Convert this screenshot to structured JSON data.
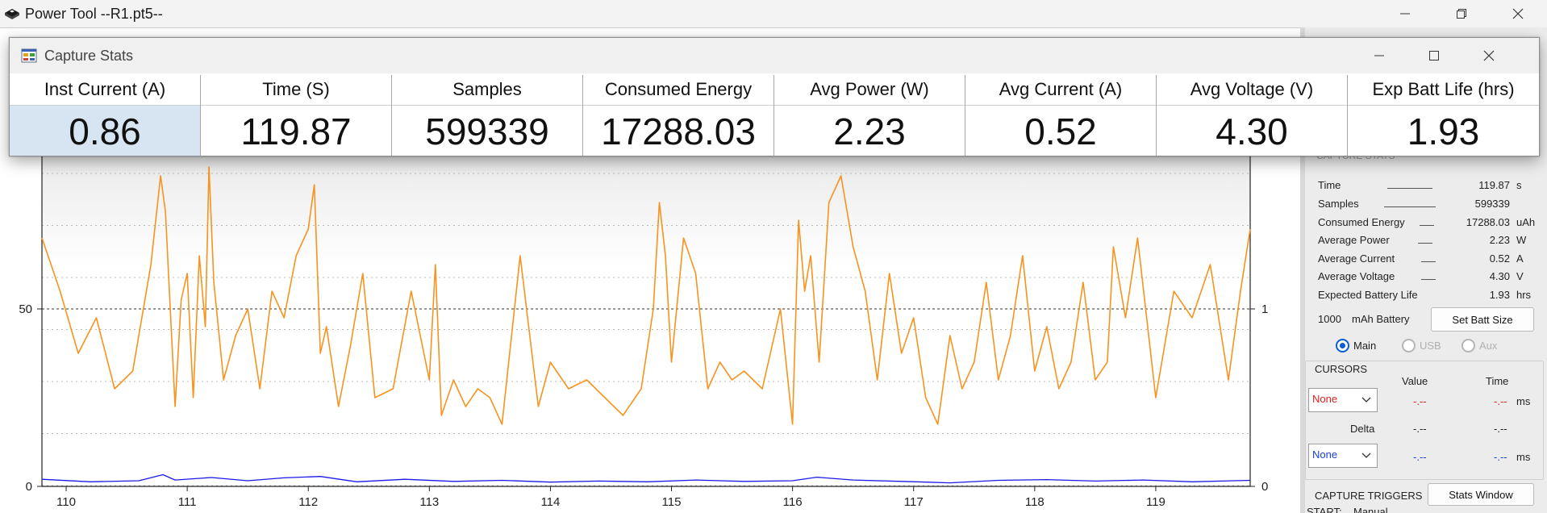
{
  "window": {
    "title": "Power Tool --R1.pt5--"
  },
  "dialog": {
    "title": "Capture Stats",
    "stats": [
      {
        "label": "Inst Current (A)",
        "value": "0.86",
        "selected": true
      },
      {
        "label": "Time (S)",
        "value": "119.87"
      },
      {
        "label": "Samples",
        "value": "599339"
      },
      {
        "label": "Consumed Energy",
        "value": "17288.03"
      },
      {
        "label": "Avg Power (W)",
        "value": "2.23"
      },
      {
        "label": "Avg Current (A)",
        "value": "0.52"
      },
      {
        "label": "Avg Voltage (V)",
        "value": "4.30"
      },
      {
        "label": "Exp Batt Life (hrs)",
        "value": "1.93"
      }
    ]
  },
  "panel": {
    "section_title": "CAPTURE STATS",
    "rows": [
      {
        "label": "Time",
        "value": "119.87",
        "unit": "s"
      },
      {
        "label": "Samples",
        "value": "599339",
        "unit": ""
      },
      {
        "label": "Consumed Energy",
        "value": "17288.03",
        "unit": "uAh"
      },
      {
        "label": "Average Power",
        "value": "2.23",
        "unit": "W"
      },
      {
        "label": "Average Current",
        "value": "0.52",
        "unit": "A"
      },
      {
        "label": "Average Voltage",
        "value": "4.30",
        "unit": "V"
      },
      {
        "label": "Expected Battery Life",
        "value": "1.93",
        "unit": "hrs"
      }
    ],
    "battery_value": "1000",
    "battery_unit": "mAh Battery",
    "set_batt_button": "Set Batt Size",
    "channels": [
      {
        "label": "Main",
        "selected": true
      },
      {
        "label": "USB",
        "selected": false
      },
      {
        "label": "Aux",
        "selected": false
      }
    ],
    "cursors": {
      "title": "CURSORS",
      "value_header": "Value",
      "time_header": "Time",
      "delta_label": "Delta",
      "cursor1": {
        "select": "None",
        "value": "-.--",
        "time": "-.--",
        "unit": "ms"
      },
      "delta": {
        "value": "-.--",
        "time": "-.--"
      },
      "cursor2": {
        "select": "None",
        "value": "-.--",
        "time": "-.--",
        "unit": "ms"
      }
    },
    "triggers_title": "CAPTURE TRIGGERS",
    "stats_window_button": "Stats Window",
    "start_label": "START:",
    "start_value": "Manual"
  },
  "colors": {
    "current_series": "#f7931e",
    "voltage_series": "#1a1ae6",
    "selected_cell": "#d7e4f2",
    "cursor_red": "#e02020",
    "cursor_blue": "#1a3ee0"
  },
  "chart_data": {
    "type": "line",
    "x_ticks": [
      "110",
      "111",
      "112",
      "113",
      "114",
      "115",
      "116",
      "117",
      "118",
      "119"
    ],
    "y_left_ticks": [
      "0",
      "50"
    ],
    "y_right_ticks": [
      "0",
      "1"
    ],
    "xlim": [
      109.8,
      119.78
    ],
    "ylim_left": [
      0,
      95
    ],
    "ylim_right": [
      0,
      1.9
    ],
    "grid": true,
    "series": [
      {
        "color": "#f7931e",
        "axis": "right",
        "x": [
          109.8,
          109.95,
          110.1,
          110.25,
          110.4,
          110.55,
          110.7,
          110.78,
          110.82,
          110.86,
          110.9,
          110.95,
          111.0,
          111.05,
          111.1,
          111.15,
          111.18,
          111.22,
          111.3,
          111.4,
          111.5,
          111.6,
          111.7,
          111.8,
          111.9,
          112.0,
          112.05,
          112.1,
          112.15,
          112.25,
          112.35,
          112.45,
          112.55,
          112.7,
          112.85,
          113.0,
          113.05,
          113.1,
          113.2,
          113.3,
          113.4,
          113.5,
          113.6,
          113.75,
          113.9,
          114.0,
          114.15,
          114.3,
          114.45,
          114.6,
          114.75,
          114.85,
          114.9,
          114.95,
          115.0,
          115.1,
          115.2,
          115.3,
          115.4,
          115.5,
          115.6,
          115.75,
          115.9,
          116.0,
          116.05,
          116.1,
          116.15,
          116.22,
          116.3,
          116.4,
          116.5,
          116.6,
          116.7,
          116.8,
          116.9,
          117.0,
          117.1,
          117.2,
          117.3,
          117.4,
          117.5,
          117.6,
          117.7,
          117.8,
          117.9,
          118.0,
          118.1,
          118.2,
          118.3,
          118.4,
          118.5,
          118.6,
          118.65,
          118.75,
          118.85,
          119.0,
          119.15,
          119.3,
          119.45,
          119.6,
          119.7,
          119.78
        ],
        "y": [
          1.4,
          1.1,
          0.75,
          0.95,
          0.55,
          0.65,
          1.25,
          1.75,
          1.55,
          1.0,
          0.45,
          1.05,
          1.2,
          0.5,
          1.3,
          0.9,
          1.8,
          1.15,
          0.6,
          0.85,
          1.0,
          0.55,
          1.1,
          0.95,
          1.3,
          1.45,
          1.7,
          0.75,
          0.9,
          0.45,
          0.8,
          1.2,
          0.5,
          0.55,
          1.1,
          0.6,
          1.25,
          0.4,
          0.6,
          0.45,
          0.55,
          0.5,
          0.35,
          1.3,
          0.45,
          0.7,
          0.55,
          0.6,
          0.5,
          0.4,
          0.55,
          1.0,
          1.6,
          1.3,
          0.7,
          1.4,
          1.2,
          0.55,
          0.7,
          0.6,
          0.65,
          0.55,
          1.0,
          0.35,
          1.5,
          1.1,
          1.3,
          0.7,
          1.6,
          1.75,
          1.35,
          1.1,
          0.6,
          1.2,
          0.75,
          0.95,
          0.5,
          0.35,
          0.85,
          0.55,
          0.7,
          1.15,
          0.6,
          0.85,
          1.3,
          0.65,
          0.9,
          0.55,
          0.7,
          1.15,
          0.6,
          0.7,
          1.35,
          0.95,
          1.4,
          0.5,
          1.1,
          0.95,
          1.25,
          0.6,
          1.1,
          1.45
        ]
      },
      {
        "color": "#1a1ae6",
        "axis": "left",
        "x": [
          109.8,
          110.2,
          110.6,
          110.8,
          110.9,
          111.2,
          111.5,
          111.8,
          112.1,
          112.4,
          112.8,
          113.2,
          113.6,
          114.0,
          114.4,
          114.8,
          115.2,
          115.6,
          116.0,
          116.2,
          116.5,
          116.9,
          117.3,
          117.7,
          118.1,
          118.5,
          118.9,
          119.3,
          119.78
        ],
        "y": [
          2.0,
          1.3,
          1.6,
          3.3,
          1.8,
          2.5,
          1.6,
          2.4,
          2.8,
          1.3,
          2.0,
          1.4,
          1.7,
          1.2,
          1.5,
          1.3,
          1.8,
          1.4,
          1.6,
          2.6,
          1.8,
          1.4,
          1.0,
          1.7,
          1.9,
          1.5,
          1.8,
          1.3,
          1.7
        ]
      }
    ]
  }
}
